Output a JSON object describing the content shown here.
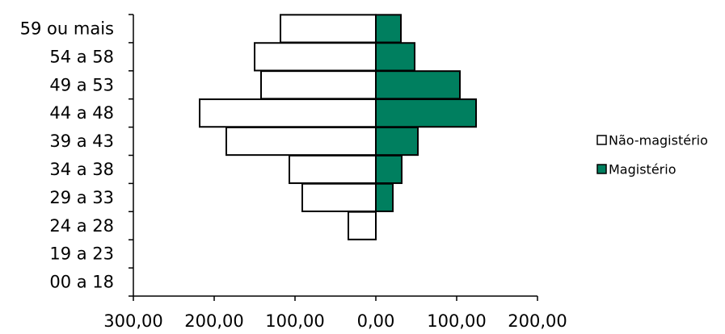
{
  "chart_data": {
    "type": "bar",
    "orientation": "horizontal",
    "layout": "population-pyramid",
    "categories": [
      "59 ou mais",
      "54 a 58",
      "49 a 53",
      "44 a 48",
      "39 a 43",
      "34 a 38",
      "29 a 33",
      "24 a 28",
      "19 a 23",
      "00 a 18"
    ],
    "series": [
      {
        "name": "Não-magistério",
        "color": "#ffffff",
        "side": "left",
        "values": [
          118,
          150,
          142,
          218,
          185,
          107,
          91,
          34,
          0,
          0
        ]
      },
      {
        "name": "Magistério",
        "color": "#007f5f",
        "side": "right",
        "values": [
          31,
          48,
          104,
          124,
          52,
          32,
          21,
          0,
          0,
          0
        ]
      }
    ],
    "xlim": [
      -300,
      200
    ],
    "xticks": [
      -300,
      -200,
      -100,
      0,
      100,
      200
    ],
    "xtick_labels": [
      "300,00",
      "200,00",
      "100,00",
      "0,00",
      "100,00",
      "200,00"
    ],
    "legend_position": "right",
    "grid": false,
    "title": "",
    "xlabel": "",
    "ylabel": ""
  }
}
